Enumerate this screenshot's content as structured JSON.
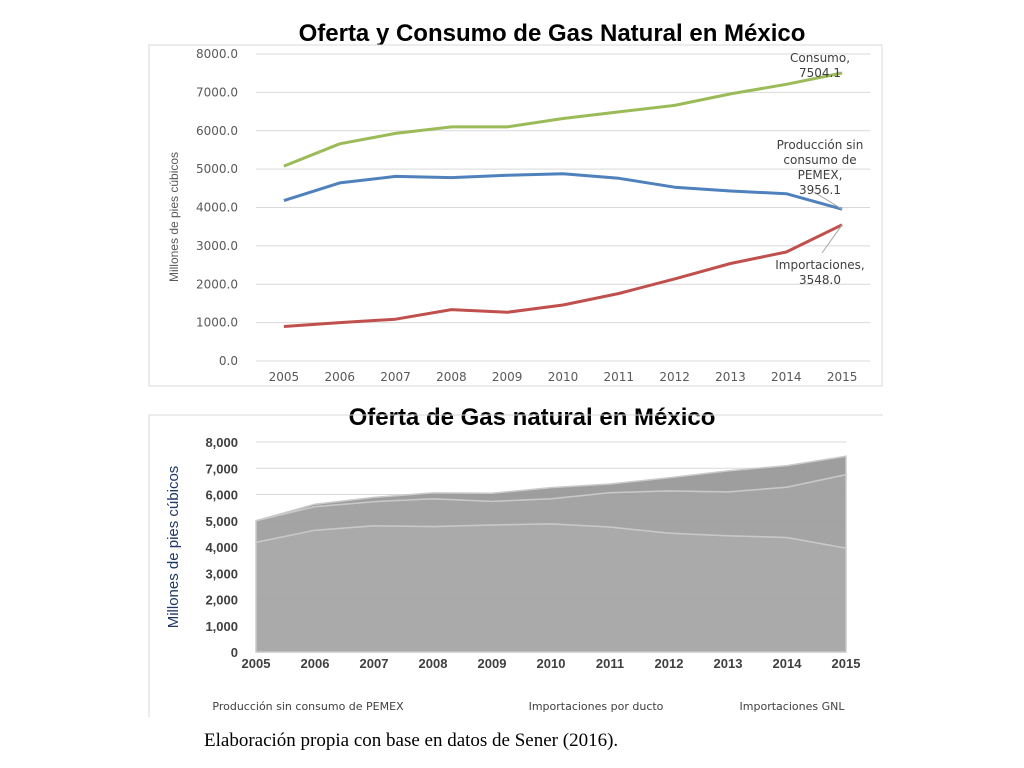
{
  "chart_data": [
    {
      "type": "line",
      "title": "Oferta y Consumo de Gas Natural en México",
      "ylabel": "Millones de pies cúbicos",
      "xlabel": "",
      "ylim": [
        0,
        8000
      ],
      "y_ticks": [
        "0.0",
        "1000.0",
        "2000.0",
        "3000.0",
        "4000.0",
        "5000.0",
        "6000.0",
        "7000.0",
        "8000.0"
      ],
      "categories": [
        "2005",
        "2006",
        "2007",
        "2008",
        "2009",
        "2010",
        "2011",
        "2012",
        "2013",
        "2014",
        "2015"
      ],
      "grid": true,
      "series": [
        {
          "color": "#9bbb59",
          "values": [
            5080,
            5660,
            5930,
            6100,
            6100,
            6320,
            6490,
            6660,
            6960,
            7210,
            7504.1
          ],
          "end_label": [
            "Consumo,",
            "7504.1"
          ]
        },
        {
          "color": "#4f81bd",
          "values": [
            4180,
            4640,
            4810,
            4780,
            4840,
            4880,
            4760,
            4530,
            4430,
            4360,
            3956.1
          ],
          "end_label": [
            "Producción sin",
            "consumo de",
            "PEMEX,",
            "3956.1"
          ]
        },
        {
          "color": "#c0504d",
          "values": [
            900,
            1000,
            1090,
            1340,
            1270,
            1460,
            1760,
            2140,
            2540,
            2840,
            3548.0
          ],
          "end_label": [
            "Importaciones,",
            "3548.0"
          ]
        }
      ]
    },
    {
      "type": "area",
      "title": "Oferta de Gas natural en México",
      "ylabel": "Millones de pies cúbicos",
      "xlabel": "",
      "ylim": [
        0,
        8000
      ],
      "y_ticks": [
        "0",
        "1,000",
        "2,000",
        "3,000",
        "4,000",
        "5,000",
        "6,000",
        "7,000",
        "8,000"
      ],
      "categories": [
        "2005",
        "2006",
        "2007",
        "2008",
        "2009",
        "2010",
        "2011",
        "2012",
        "2013",
        "2014",
        "2015"
      ],
      "stacked": true,
      "legend_position": "bottom",
      "series": [
        {
          "name": "Producción sin consumo de PEMEX",
          "color": "#a6a6a6",
          "values": [
            4180,
            4640,
            4810,
            4780,
            4840,
            4880,
            4760,
            4530,
            4430,
            4360,
            3956
          ]
        },
        {
          "name": "Importaciones por ducto",
          "color": "#a0a0a0",
          "values": [
            820,
            900,
            920,
            1060,
            900,
            960,
            1310,
            1610,
            1670,
            1920,
            2800
          ]
        },
        {
          "name": "Importaciones GNL",
          "color": "#999999",
          "values": [
            0,
            90,
            160,
            220,
            310,
            420,
            330,
            500,
            800,
            820,
            700
          ]
        }
      ]
    }
  ],
  "footer": "Elaboración propia con base en datos de Sener (2016)."
}
